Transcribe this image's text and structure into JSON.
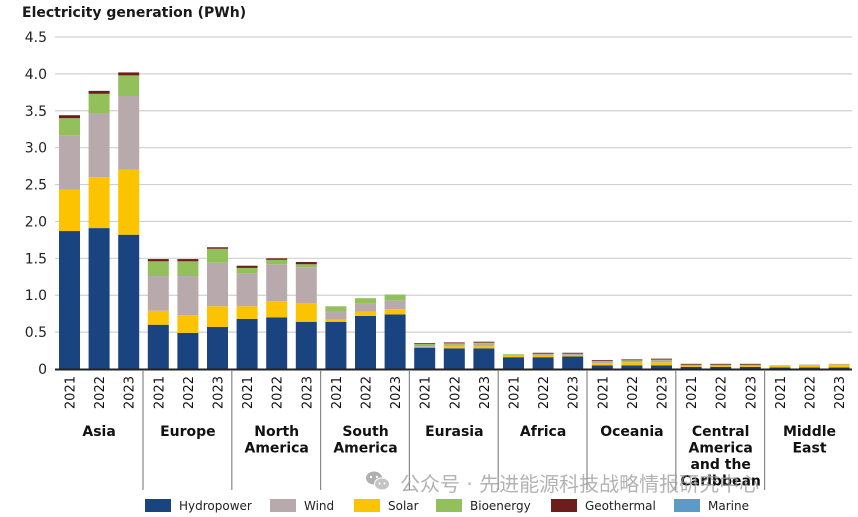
{
  "chart_data": {
    "type": "bar",
    "stacked": true,
    "title": "Electricity generation (PWh)",
    "xlabel": "",
    "ylabel": "Electricity generation (PWh)",
    "ylim": [
      0,
      4.5
    ],
    "yticks": [
      0,
      0.5,
      1.0,
      1.5,
      2.0,
      2.5,
      3.0,
      3.5,
      4.0,
      4.5
    ],
    "ytick_labels": [
      "0",
      "0.5",
      "1.0",
      "1.5",
      "2.0",
      "2.5",
      "3.0",
      "3.5",
      "4.0",
      "4.5"
    ],
    "grid": true,
    "legend_position": "bottom",
    "years": [
      "2021",
      "2022",
      "2023"
    ],
    "regions": [
      {
        "name": "Asia",
        "label_lines": [
          "Asia"
        ]
      },
      {
        "name": "Europe",
        "label_lines": [
          "Europe"
        ]
      },
      {
        "name": "North America",
        "label_lines": [
          "North",
          "America"
        ]
      },
      {
        "name": "South America",
        "label_lines": [
          "South",
          "America"
        ]
      },
      {
        "name": "Eurasia",
        "label_lines": [
          "Eurasia"
        ]
      },
      {
        "name": "Africa",
        "label_lines": [
          "Africa"
        ]
      },
      {
        "name": "Oceania",
        "label_lines": [
          "Oceania"
        ]
      },
      {
        "name": "Central America and the Caribbean",
        "label_lines": [
          "Central",
          "America",
          "and the",
          "Caribbean"
        ]
      },
      {
        "name": "Middle East",
        "label_lines": [
          "Middle",
          "East"
        ]
      }
    ],
    "series": [
      {
        "name": "Hydropower",
        "color": "#1a4480",
        "values": [
          [
            1.87,
            1.91,
            1.82
          ],
          [
            0.6,
            0.49,
            0.57
          ],
          [
            0.68,
            0.7,
            0.64
          ],
          [
            0.64,
            0.72,
            0.74
          ],
          [
            0.29,
            0.28,
            0.28
          ],
          [
            0.16,
            0.16,
            0.17
          ],
          [
            0.05,
            0.05,
            0.05
          ],
          [
            0.03,
            0.03,
            0.03
          ],
          [
            0.02,
            0.02,
            0.02
          ]
        ]
      },
      {
        "name": "Solar",
        "color": "#fcc400",
        "values": [
          [
            0.56,
            0.69,
            0.88
          ],
          [
            0.19,
            0.24,
            0.28
          ],
          [
            0.17,
            0.22,
            0.25
          ],
          [
            0.03,
            0.06,
            0.07
          ],
          [
            0.01,
            0.03,
            0.03
          ],
          [
            0.02,
            0.02,
            0.02
          ],
          [
            0.03,
            0.04,
            0.04
          ],
          [
            0.01,
            0.01,
            0.01
          ],
          [
            0.02,
            0.03,
            0.04
          ]
        ]
      },
      {
        "name": "Wind",
        "color": "#b8a9ad",
        "values": [
          [
            0.74,
            0.87,
            1.0
          ],
          [
            0.47,
            0.53,
            0.59
          ],
          [
            0.45,
            0.5,
            0.49
          ],
          [
            0.11,
            0.11,
            0.12
          ],
          [
            0.01,
            0.02,
            0.04
          ],
          [
            0.01,
            0.02,
            0.02
          ],
          [
            0.02,
            0.02,
            0.03
          ],
          [
            0.01,
            0.01,
            0.01
          ],
          [
            0.01,
            0.01,
            0.01
          ]
        ]
      },
      {
        "name": "Bioenergy",
        "color": "#92c05a",
        "values": [
          [
            0.23,
            0.26,
            0.28
          ],
          [
            0.2,
            0.2,
            0.19
          ],
          [
            0.07,
            0.06,
            0.04
          ],
          [
            0.07,
            0.07,
            0.08
          ],
          [
            0.03,
            0.02,
            0.01
          ],
          [
            0.01,
            0.01,
            0.0
          ],
          [
            0.01,
            0.01,
            0.01
          ],
          [
            0.01,
            0.01,
            0.01
          ],
          [
            0.0,
            0.0,
            0.0
          ]
        ]
      },
      {
        "name": "Geothermal",
        "color": "#6e1e1a",
        "values": [
          [
            0.04,
            0.04,
            0.04
          ],
          [
            0.03,
            0.03,
            0.02
          ],
          [
            0.03,
            0.02,
            0.03
          ],
          [
            0.0,
            0.0,
            0.0
          ],
          [
            0.01,
            0.01,
            0.01
          ],
          [
            0.0,
            0.01,
            0.01
          ],
          [
            0.01,
            0.01,
            0.01
          ],
          [
            0.01,
            0.01,
            0.01
          ],
          [
            0.0,
            0.0,
            0.0
          ]
        ]
      },
      {
        "name": "Marine",
        "color": "#5b9bc8",
        "values": [
          [
            0.0,
            0.0,
            0.0
          ],
          [
            0.0,
            0.0,
            0.0
          ],
          [
            0.0,
            0.0,
            0.0
          ],
          [
            0.0,
            0.0,
            0.0
          ],
          [
            0.0,
            0.0,
            0.0
          ],
          [
            0.0,
            0.0,
            0.0
          ],
          [
            0.0,
            0.0,
            0.0
          ],
          [
            0.0,
            0.0,
            0.0
          ],
          [
            0.0,
            0.0,
            0.0
          ]
        ]
      }
    ],
    "legend_order": [
      "Hydropower",
      "Wind",
      "Solar",
      "Bioenergy",
      "Geothermal",
      "Marine"
    ]
  },
  "watermark": {
    "icon": "wechat-icon",
    "text": "公众号 · 先进能源科技战略情报研究中心"
  }
}
